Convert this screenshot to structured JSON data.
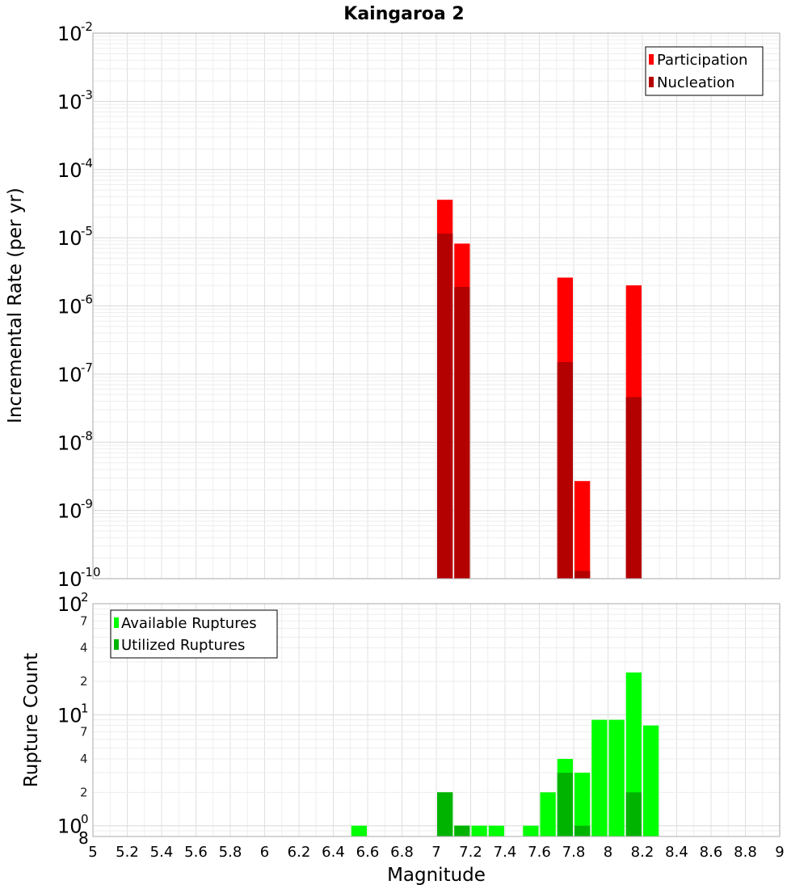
{
  "chart_data": [
    {
      "type": "bar",
      "title": "Kaingaroa 2",
      "xlabel": "Magnitude",
      "ylabel": "Incremental Rate (per yr)",
      "yscale": "log",
      "xlim": [
        5,
        9
      ],
      "ylim": [
        1e-10,
        0.01
      ],
      "bin_width": 0.1,
      "y_major_ticks": [
        {
          "base": "10",
          "exp": "-10",
          "value": 1e-10
        },
        {
          "base": "10",
          "exp": "-9",
          "value": 1e-09
        },
        {
          "base": "10",
          "exp": "-8",
          "value": 1e-08
        },
        {
          "base": "10",
          "exp": "-7",
          "value": 1e-07
        },
        {
          "base": "10",
          "exp": "-6",
          "value": 1e-06
        },
        {
          "base": "10",
          "exp": "-5",
          "value": 1e-05
        },
        {
          "base": "10",
          "exp": "-4",
          "value": 0.0001
        },
        {
          "base": "10",
          "exp": "-3",
          "value": 0.001
        },
        {
          "base": "10",
          "exp": "-2",
          "value": 0.01
        }
      ],
      "legend": {
        "position": "top-right"
      },
      "series": [
        {
          "name": "Participation",
          "color": "#ff0000",
          "x": [
            7.05,
            7.15,
            7.75,
            7.85,
            8.15
          ],
          "values": [
            3.6e-05,
            8.2e-06,
            2.6e-06,
            2.7e-09,
            2e-06
          ]
        },
        {
          "name": "Nucleation",
          "color": "#b30000",
          "x": [
            7.05,
            7.15,
            7.75,
            7.85,
            8.15
          ],
          "values": [
            1.15e-05,
            1.9e-06,
            1.5e-07,
            1.3e-10,
            4.6e-08
          ]
        }
      ]
    },
    {
      "type": "bar",
      "xlabel": "Magnitude",
      "ylabel": "Rupture Count",
      "yscale": "log",
      "xlim": [
        5,
        9
      ],
      "ylim": [
        0.8,
        100
      ],
      "bin_width": 0.1,
      "x_ticks": [
        "5",
        "5.2",
        "5.4",
        "5.6",
        "5.8",
        "6",
        "6.2",
        "6.4",
        "6.6",
        "6.8",
        "7",
        "7.2",
        "7.4",
        "7.6",
        "7.8",
        "8",
        "8.2",
        "8.4",
        "8.6",
        "8.8",
        "9"
      ],
      "y_major_ticks": [
        {
          "base": "10",
          "exp": "0",
          "value": 1
        },
        {
          "base": "10",
          "exp": "1",
          "value": 10
        },
        {
          "base": "10",
          "exp": "2",
          "value": 100
        }
      ],
      "y_minor_ticks": [
        {
          "label": "8",
          "value": 0.8
        },
        {
          "label": "2",
          "value": 2
        },
        {
          "label": "4",
          "value": 4
        },
        {
          "label": "7",
          "value": 7
        },
        {
          "label": "2",
          "value": 20
        },
        {
          "label": "4",
          "value": 40
        },
        {
          "label": "7",
          "value": 70
        }
      ],
      "legend": {
        "position": "top-left"
      },
      "series": [
        {
          "name": "Available Ruptures",
          "color": "#00ff00",
          "x": [
            6.55,
            7.05,
            7.15,
            7.25,
            7.35,
            7.55,
            7.65,
            7.75,
            7.85,
            7.95,
            8.05,
            8.15,
            8.25
          ],
          "values": [
            1,
            2,
            1,
            1,
            1,
            1,
            2,
            4,
            3,
            9,
            9,
            24,
            8
          ]
        },
        {
          "name": "Utilized Ruptures",
          "color": "#00b300",
          "x": [
            7.05,
            7.15,
            7.75,
            7.85,
            8.15
          ],
          "values": [
            2,
            1,
            3,
            1,
            2
          ]
        }
      ]
    }
  ]
}
